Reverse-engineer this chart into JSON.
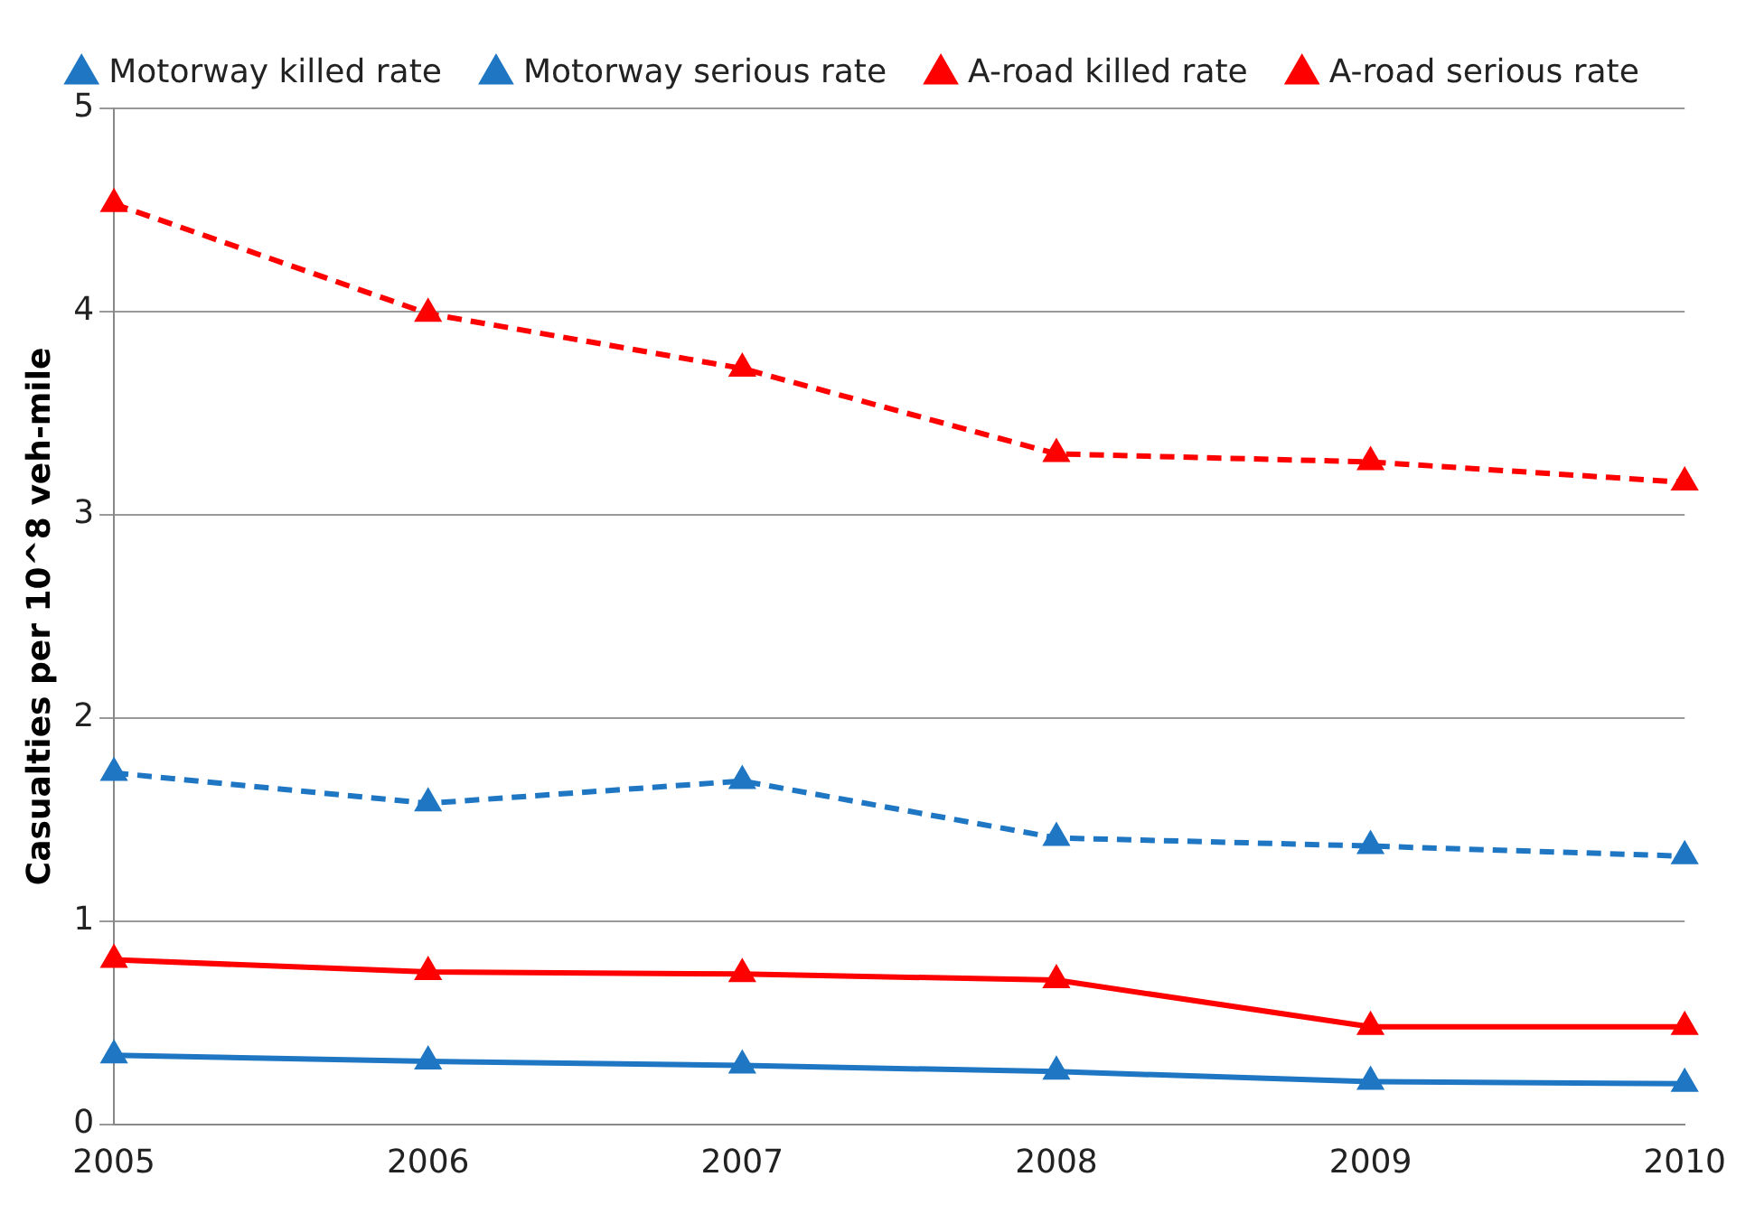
{
  "chart_data": {
    "type": "line",
    "ylabel": "Casualties per 10^8 veh-mile",
    "categories": [
      "2005",
      "2006",
      "2007",
      "2008",
      "2009",
      "2010"
    ],
    "series": [
      {
        "name": "Motorway killed rate",
        "color": "#1f77c4",
        "line_style": "solid",
        "values": [
          0.34,
          0.31,
          0.29,
          0.26,
          0.21,
          0.2
        ]
      },
      {
        "name": "Motorway serious rate",
        "color": "#1f77c4",
        "line_style": "dashed",
        "values": [
          1.73,
          1.58,
          1.69,
          1.41,
          1.37,
          1.32
        ]
      },
      {
        "name": "A-road killed rate",
        "color": "#ff0000",
        "line_style": "solid",
        "values": [
          0.81,
          0.75,
          0.74,
          0.71,
          0.48,
          0.48
        ]
      },
      {
        "name": "A-road serious rate",
        "color": "#ff0000",
        "line_style": "dashed",
        "values": [
          4.53,
          3.99,
          3.72,
          3.3,
          3.26,
          3.16
        ]
      }
    ],
    "ylim": [
      0,
      5
    ],
    "yticks": [
      0,
      1,
      2,
      3,
      4,
      5
    ],
    "grid": "y",
    "legend": "top",
    "marker": "triangle"
  }
}
